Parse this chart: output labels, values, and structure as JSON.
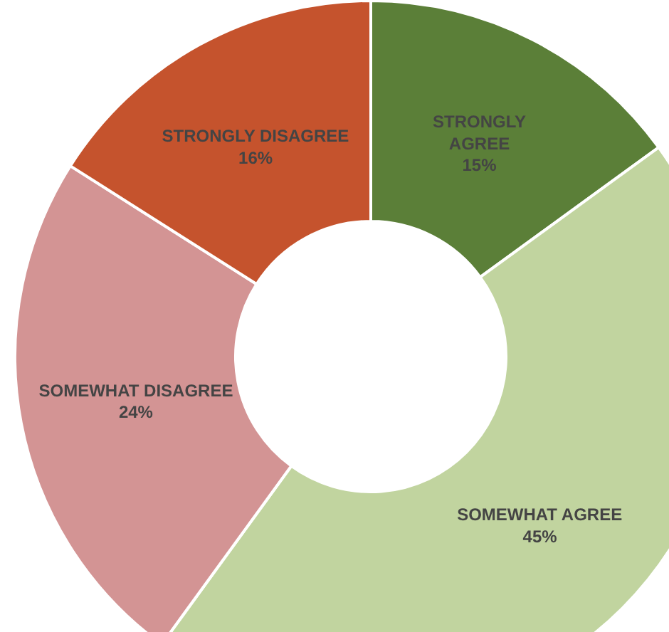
{
  "chart_data": {
    "type": "donut",
    "categories": [
      "STRONGLY AGREE",
      "SOMEWHAT AGREE",
      "SOMEWHAT DISAGREE",
      "STRONGLY DISAGREE"
    ],
    "values": [
      15,
      45,
      24,
      16
    ],
    "value_labels": [
      "15%",
      "45%",
      "24%",
      "16%"
    ],
    "colors": [
      "#5b7f38",
      "#c1d49f",
      "#d39494",
      "#c5532d"
    ]
  }
}
